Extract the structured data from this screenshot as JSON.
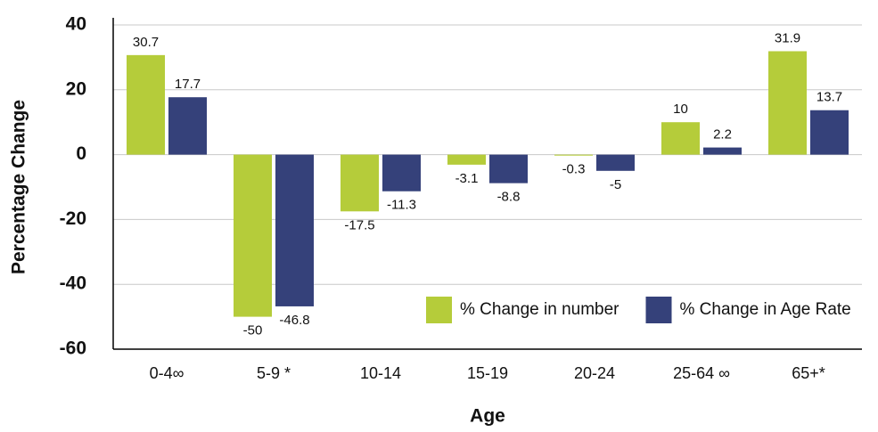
{
  "chart_data": {
    "type": "bar",
    "x_label": "Age",
    "y_label": "Percentage Change",
    "categories": [
      "0-4∞",
      "5-9 *",
      "10-14",
      "15-19",
      "20-24",
      "25-64 ∞",
      "65+*"
    ],
    "series": [
      {
        "name": "% Change in number",
        "color": "#b5cc3a",
        "values": [
          30.7,
          -50,
          -17.5,
          -3.1,
          -0.3,
          10,
          31.9
        ]
      },
      {
        "name": "% Change in Age Rate",
        "color": "#35417a",
        "values": [
          17.7,
          -46.8,
          -11.3,
          -8.8,
          -5,
          2.2,
          13.7
        ]
      }
    ],
    "ylim": [
      -60,
      40
    ],
    "yticks": [
      -60,
      -40,
      -20,
      0,
      20,
      40
    ],
    "grid": true,
    "legend": "lower right"
  }
}
